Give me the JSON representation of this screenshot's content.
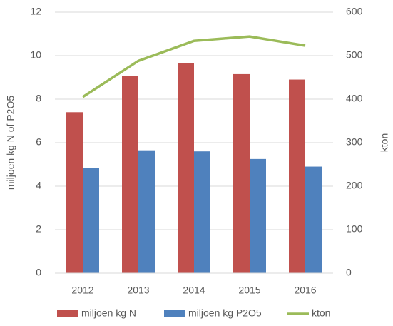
{
  "chart_data": {
    "type": "bar",
    "categories": [
      "2012",
      "2013",
      "2014",
      "2015",
      "2016"
    ],
    "series": [
      {
        "name": "miljoen kg N",
        "color": "#c0504d",
        "values": [
          7.4,
          9.05,
          9.65,
          9.15,
          8.9
        ]
      },
      {
        "name": "miljoen kg P2O5",
        "color": "#4f81bd",
        "values": [
          4.85,
          5.65,
          5.6,
          5.25,
          4.9
        ]
      },
      {
        "name": "kton",
        "color": "#9bbb59",
        "type": "line",
        "axis": "y2",
        "values": [
          405,
          488,
          534,
          544,
          523
        ]
      }
    ],
    "ylabel": "miljoen kg N of P2O5",
    "y2label": "kton",
    "ylim": [
      0,
      12
    ],
    "yticks": [
      0,
      2,
      4,
      6,
      8,
      10,
      12
    ],
    "y2lim": [
      0,
      600
    ],
    "y2ticks": [
      0,
      100,
      200,
      300,
      400,
      500,
      600
    ],
    "grid": true,
    "legend": "bottom"
  }
}
